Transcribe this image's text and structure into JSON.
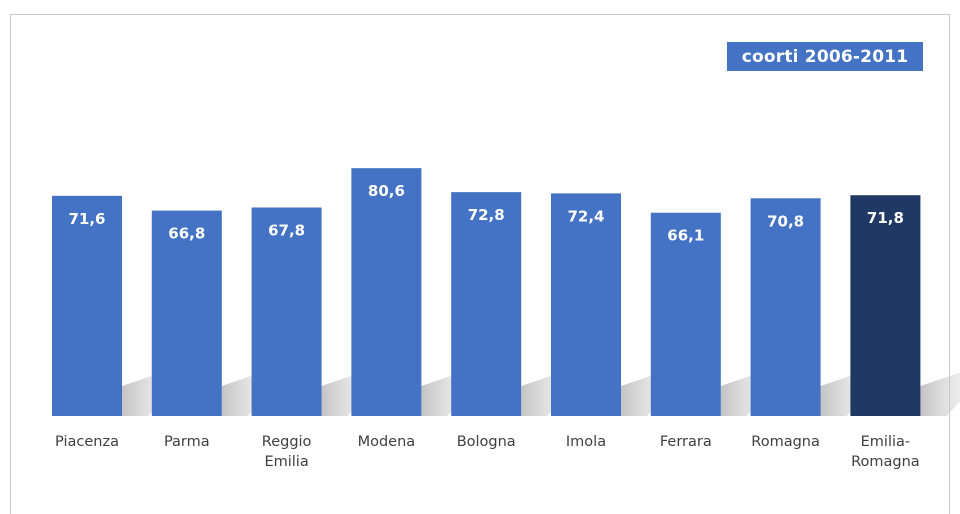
{
  "chart_data": {
    "type": "bar",
    "legend_label": "coorti 2006-2011",
    "legend_placement": "top-right",
    "categories": [
      [
        "Piacenza"
      ],
      [
        "Parma"
      ],
      [
        "Reggio",
        "Emilia"
      ],
      [
        "Modena"
      ],
      [
        "Bologna"
      ],
      [
        "Imola"
      ],
      [
        "Ferrara"
      ],
      [
        "Romagna"
      ],
      [
        "Emilia-",
        "Romagna"
      ]
    ],
    "values": [
      71.6,
      66.8,
      67.8,
      80.6,
      72.8,
      72.4,
      66.1,
      70.8,
      71.8
    ],
    "value_labels": [
      "71,6",
      "66,8",
      "67,8",
      "80,6",
      "72,8",
      "72,4",
      "66,1",
      "70,8",
      "71,8"
    ],
    "colors": {
      "bar": "#4472c4",
      "highlight_bar": "#1f3864",
      "label_text": "#404040"
    },
    "highlight_index": 8,
    "grid": false
  }
}
